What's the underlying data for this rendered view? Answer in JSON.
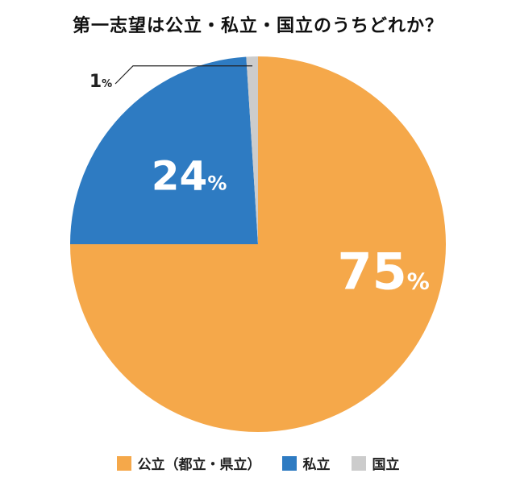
{
  "chart_data": {
    "type": "pie",
    "title": "第一志望は公立・私立・国立のうちどれか？",
    "categories": [
      "公立（都立・県立）",
      "私立",
      "国立"
    ],
    "values": [
      75,
      24,
      1
    ],
    "unit": "%",
    "colors": [
      "#F5A84A",
      "#2E7BC2",
      "#CCCCCC"
    ],
    "labels": [
      "75",
      "24",
      "1"
    ],
    "legend_position": "bottom"
  }
}
